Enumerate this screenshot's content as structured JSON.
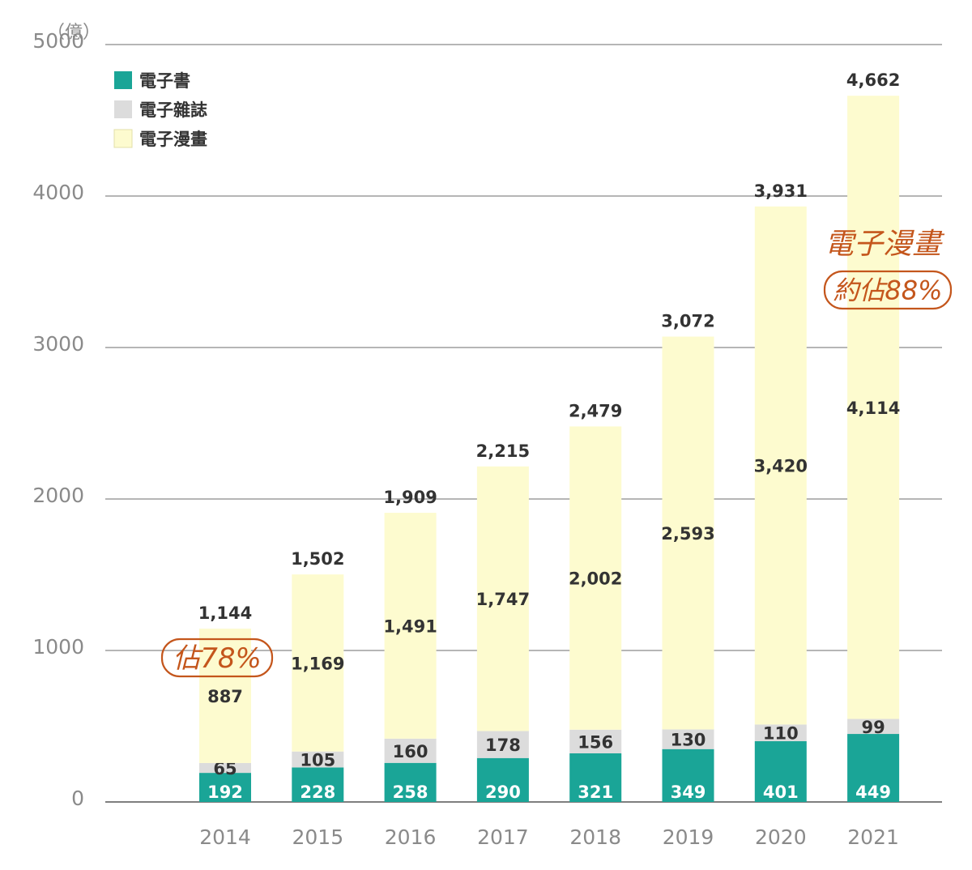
{
  "chart_data": {
    "type": "bar",
    "stacked": true,
    "unit_label": "（億）",
    "categories": [
      "2014",
      "2015",
      "2016",
      "2017",
      "2018",
      "2019",
      "2020",
      "2021"
    ],
    "series": [
      {
        "name": "電子書",
        "color": "#1aa597",
        "label_color": "#ffffff",
        "values": [
          192,
          228,
          258,
          290,
          321,
          349,
          401,
          449
        ]
      },
      {
        "name": "電子雜誌",
        "color": "#dcdcdc",
        "label_color": "#333333",
        "values": [
          65,
          105,
          160,
          178,
          156,
          130,
          110,
          99
        ]
      },
      {
        "name": "電子漫畫",
        "color": "#fdfbcf",
        "label_color": "#333333",
        "values": [
          887,
          1169,
          1491,
          1747,
          2002,
          2593,
          3420,
          4114
        ]
      }
    ],
    "totals": [
      "1,144",
      "1,502",
      "1,909",
      "2,215",
      "2,479",
      "3,072",
      "3,931",
      "4,662"
    ],
    "value_labels": [
      [
        "192",
        "228",
        "258",
        "290",
        "321",
        "349",
        "401",
        "449"
      ],
      [
        "65",
        "105",
        "160",
        "178",
        "156",
        "130",
        "110",
        "99"
      ],
      [
        "887",
        "1,169",
        "1,491",
        "1,747",
        "2,002",
        "2,593",
        "3,420",
        "4,114"
      ]
    ],
    "y_ticks": [
      "0",
      "1000",
      "2000",
      "3000",
      "4000",
      "5000"
    ],
    "ylim": [
      0,
      5000
    ],
    "grid": true,
    "legend_position": "top-left",
    "annotations": [
      {
        "text": "佔78%",
        "category": "2014",
        "boxed": true
      },
      {
        "text": "電子漫畫",
        "category": "2021",
        "boxed": false
      },
      {
        "text": "約佔88%",
        "category": "2021",
        "boxed": true
      }
    ],
    "annotation_color": "#c4561c"
  }
}
